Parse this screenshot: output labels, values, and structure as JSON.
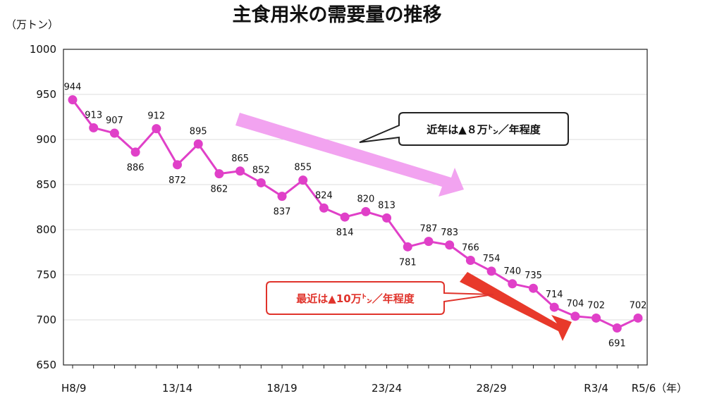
{
  "chart_data": {
    "type": "line",
    "title": "主食用米の需要量の推移",
    "ylabel": "（万トン）",
    "xlabel": "（年）",
    "ylim": [
      650,
      1000
    ],
    "yticks": [
      650,
      700,
      750,
      800,
      850,
      900,
      950,
      1000
    ],
    "x_tick_labels": [
      "H8/9",
      "13/14",
      "18/19",
      "23/24",
      "28/29",
      "R3/4",
      "R5/6"
    ],
    "x_tick_index": [
      0,
      5,
      10,
      15,
      20,
      25,
      27
    ],
    "grid": true,
    "series": [
      {
        "color": "#e040c8",
        "values": [
          944,
          913,
          907,
          886,
          912,
          872,
          895,
          862,
          865,
          852,
          837,
          855,
          824,
          814,
          820,
          813,
          781,
          787,
          783,
          766,
          754,
          740,
          735,
          714,
          704,
          702,
          691,
          702
        ]
      }
    ],
    "annotations": {
      "recent_years": {
        "text": "近年は▲８万㌧／年程度",
        "arrow_color": "#f2a3f0"
      },
      "latest": {
        "text": "最近は▲10万㌧／年程度",
        "arrow_color": "#e8392a",
        "border_color": "#e0332b"
      }
    }
  }
}
